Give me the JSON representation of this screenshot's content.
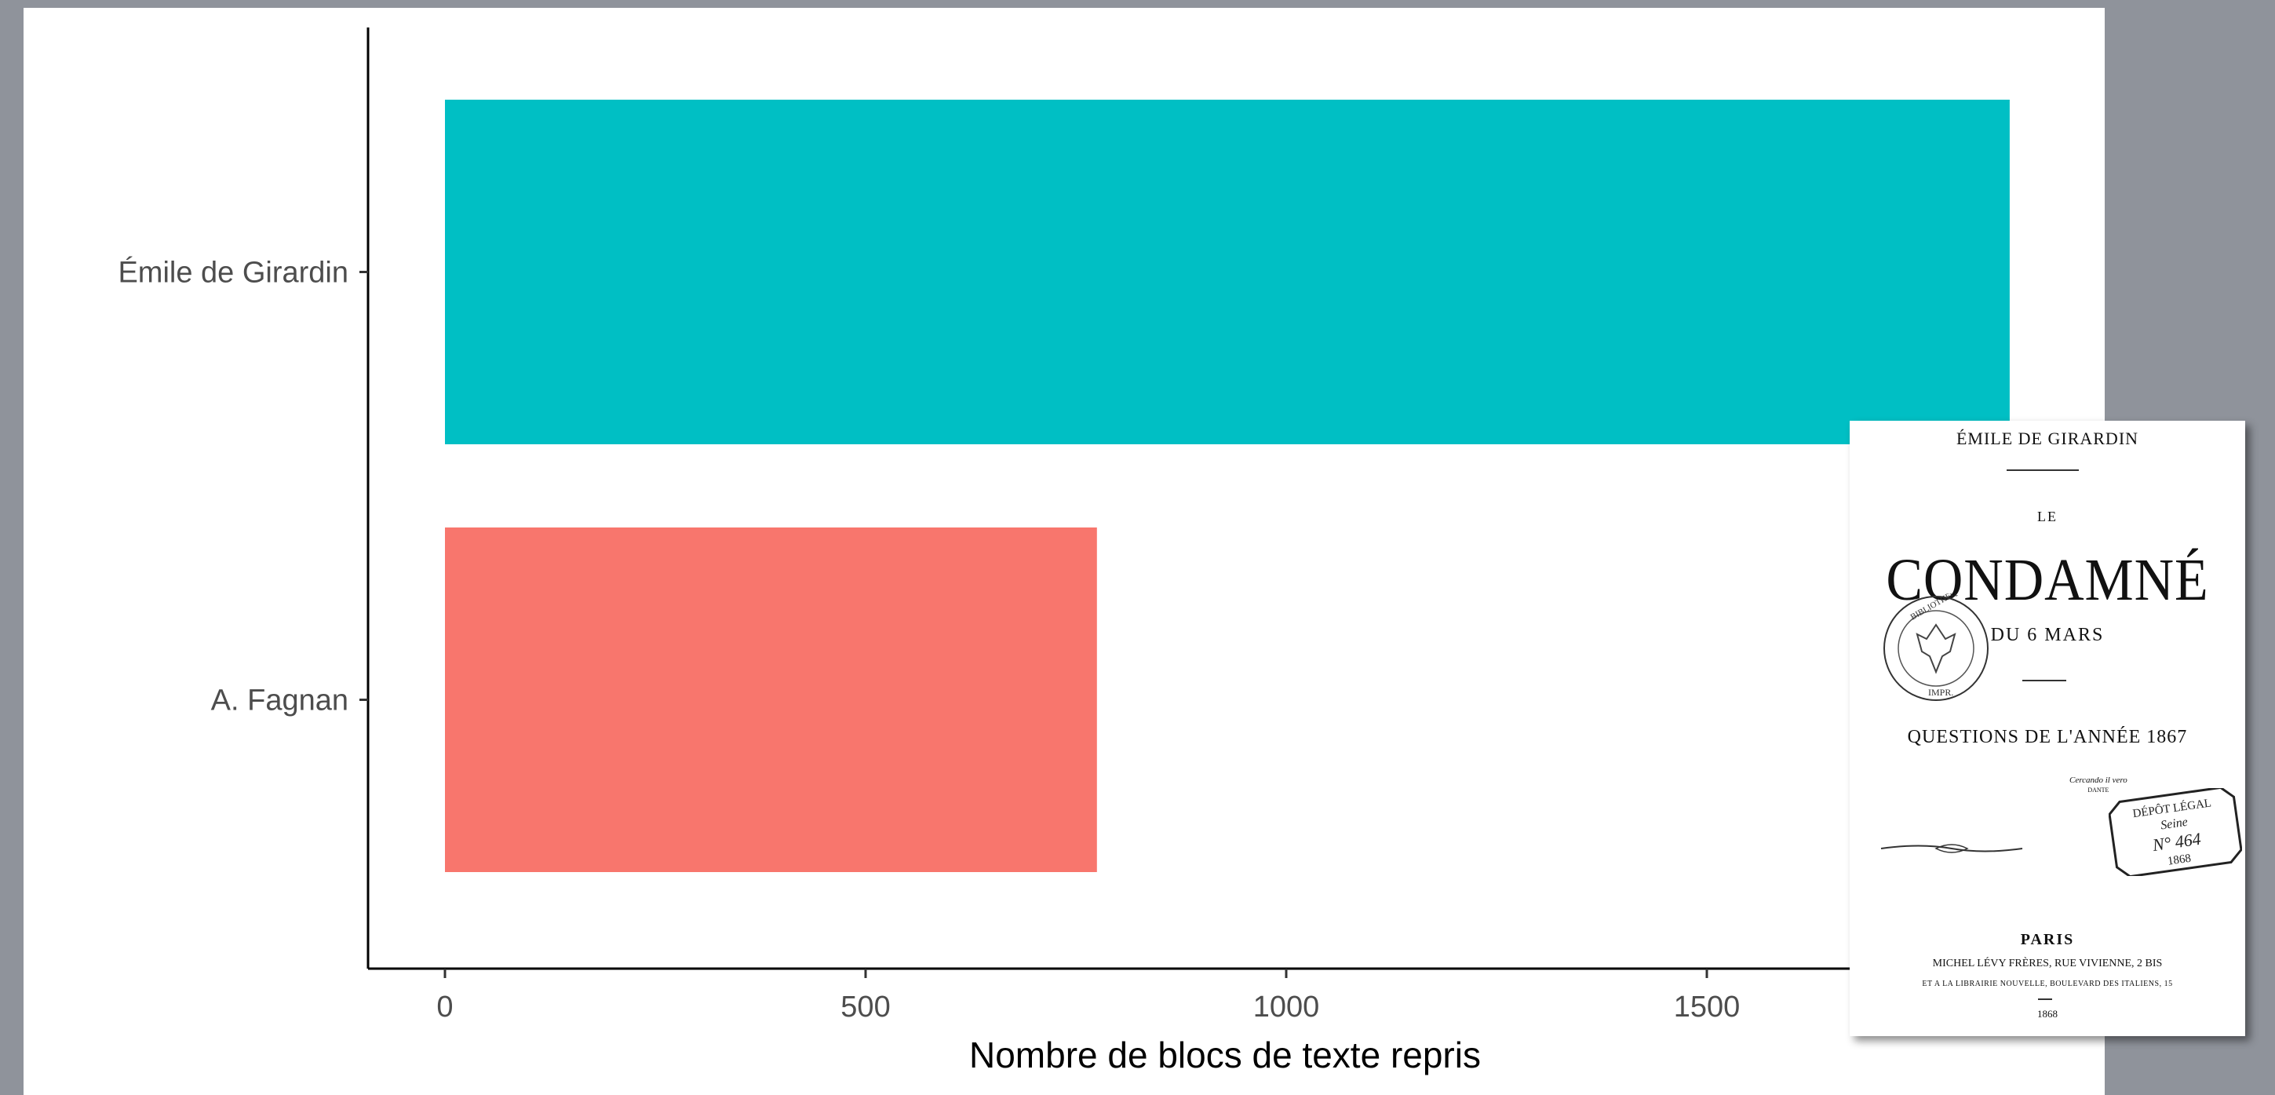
{
  "chart_data": {
    "type": "bar",
    "orientation": "horizontal",
    "categories": [
      "Émile de Girardin",
      "A. Fagnan"
    ],
    "values": [
      1860,
      775
    ],
    "colors": [
      "#00BFC4",
      "#F8766D"
    ],
    "xlabel": "Nombre de blocs de texte repris",
    "ylabel": "",
    "xlim": [
      0,
      2000
    ],
    "xticks": [
      0,
      500,
      1000,
      1500
    ],
    "grid": false
  },
  "book_cover": {
    "author": "ÉMILE DE GIRARDIN",
    "article": "LE",
    "title": "CONDAMNÉ",
    "subtitle": "DU 6 MARS",
    "questions": "QUESTIONS DE L'ANNÉE 1867",
    "epigraph": "Cercando il vero",
    "epigraph_author": "DANTE",
    "stamp_library": "BIBLIOTHÈQUE IMPÉRIALE",
    "stamp_library_bottom": "IMPR.",
    "stamp_depot_title": "DÉPÔT LÉGAL",
    "stamp_depot_region": "Seine",
    "stamp_depot_number": "N° 464",
    "stamp_depot_year": "1868",
    "city": "PARIS",
    "publisher_line1": "MICHEL LÉVY FRÈRES, RUE VIVIENNE, 2 BIS",
    "publisher_line2": "ET A LA LIBRAIRIE NOUVELLE, BOULEVARD DES ITALIENS, 15",
    "year": "1868"
  }
}
